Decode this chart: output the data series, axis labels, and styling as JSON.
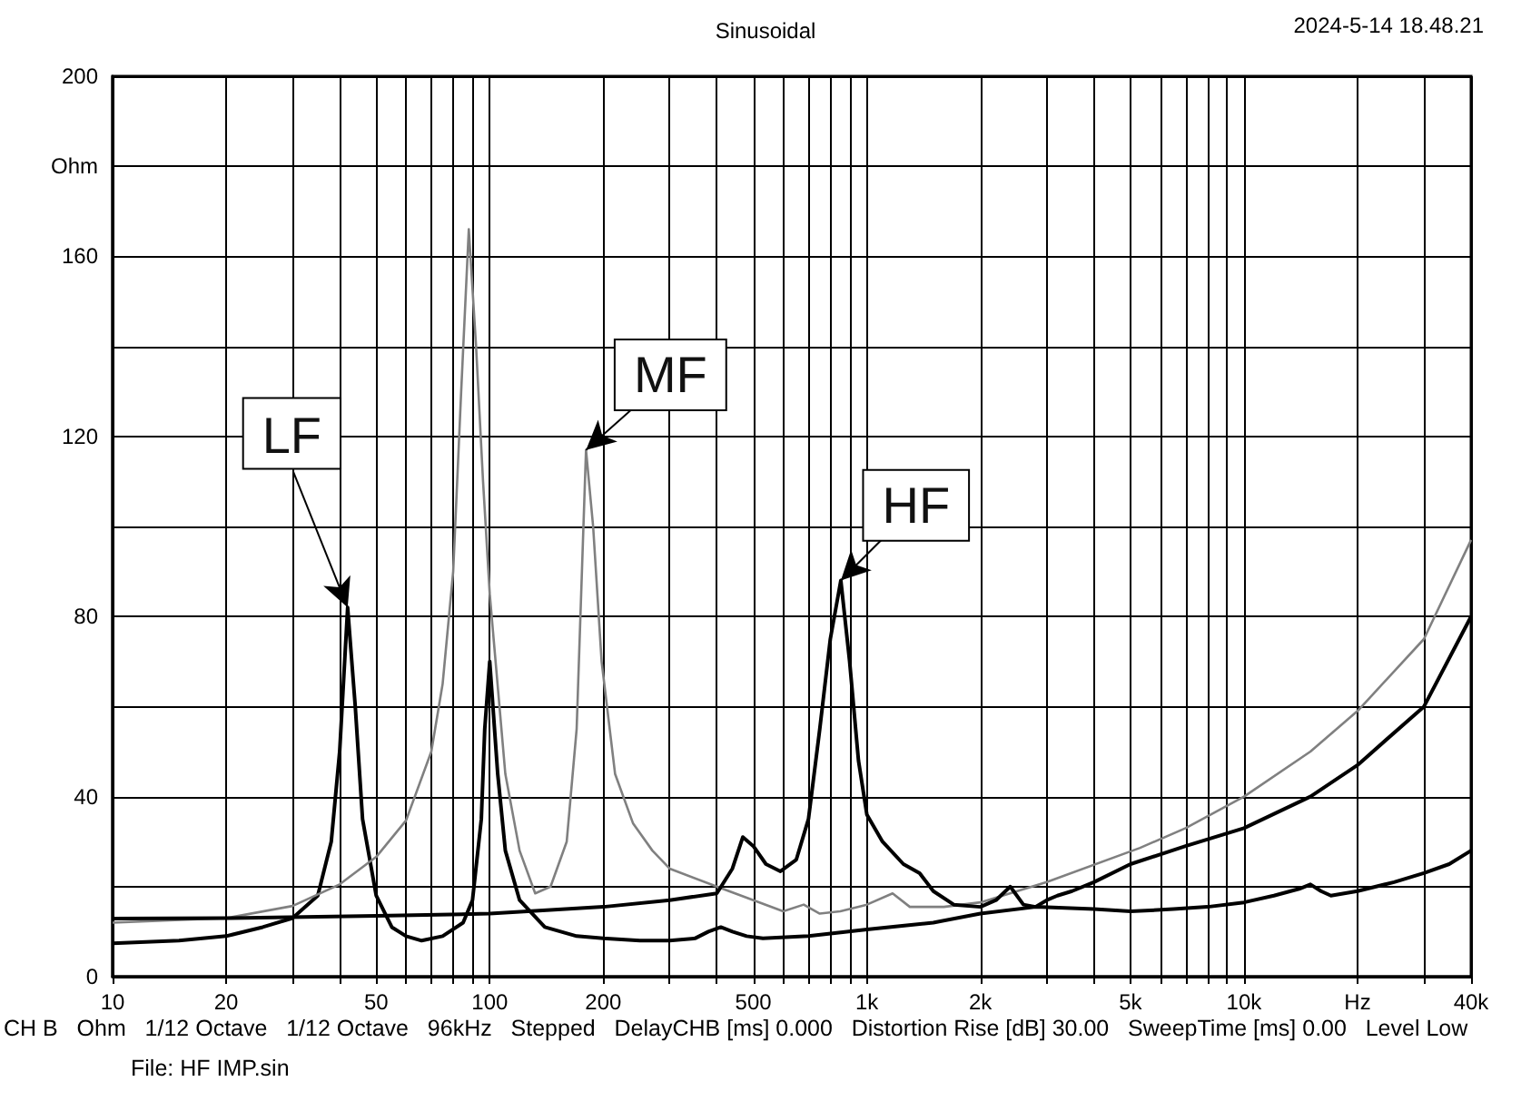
{
  "chart_data": {
    "type": "line",
    "title": "Sinusoidal",
    "annotations": [
      "2024-5-14 18.48.21",
      "CH B   Ohm   1/12 Octave   1/12 Octave   96kHz   Stepped   DelayCHB [ms] 0.000   Distortion Rise [dB] 30.00   SweepTime [ms] 0.00   Level Low",
      "File: HF IMP.sin",
      {
        "text": "LF",
        "x": 42,
        "y": 82
      },
      {
        "text": "MF",
        "x": 180,
        "y": 117
      },
      {
        "text": "HF",
        "x": 853,
        "y": 88
      }
    ],
    "series": [
      {
        "color": "#000000",
        "x": [
          10,
          15,
          20,
          25,
          30,
          35,
          38,
          40,
          42,
          44,
          46,
          50,
          55,
          60,
          66,
          75,
          85,
          90,
          95,
          97,
          100,
          105,
          110,
          120,
          140,
          170,
          200,
          250,
          300,
          350,
          380,
          410,
          440,
          480,
          530,
          700,
          1000,
          1500,
          2000,
          2800,
          4000,
          5000,
          6500,
          8000,
          10000,
          12000,
          14000,
          15000,
          16000,
          17000,
          20000,
          25000,
          30000,
          35000,
          40000
        ],
        "values": [
          7.4,
          8,
          9,
          11,
          13,
          18,
          30,
          50,
          82,
          60,
          35,
          18,
          11,
          9,
          8,
          9,
          12,
          17,
          35,
          55,
          70,
          45,
          28,
          17,
          11,
          9,
          8.5,
          8,
          8,
          8.5,
          10,
          11,
          10,
          9,
          8.5,
          9,
          10.5,
          12,
          14,
          15.5,
          15,
          14.5,
          15,
          15.5,
          16.5,
          18,
          19.5,
          20.5,
          19,
          18,
          19,
          21,
          23,
          25,
          28
        ]
      },
      {
        "color": "#808080",
        "x": [
          10,
          20,
          30,
          40,
          50,
          60,
          70,
          75,
          80,
          84,
          88,
          92,
          96,
          100,
          110,
          120,
          132,
          145,
          160,
          170,
          180,
          188,
          198,
          215,
          240,
          270,
          300,
          400,
          500,
          600,
          680,
          750,
          850,
          1000,
          1170,
          1300,
          1600,
          2000,
          3000,
          5300,
          7000,
          10000,
          15000,
          20000,
          30000,
          40000
        ],
        "values": [
          12,
          13,
          15.7,
          20.5,
          26.6,
          34.7,
          50,
          65,
          90,
          130,
          166,
          140,
          110,
          85,
          45,
          28,
          18.5,
          20,
          30,
          55,
          117,
          100,
          70,
          45,
          34,
          28,
          24,
          20,
          17,
          14.5,
          16,
          14,
          14.5,
          16,
          18.5,
          15.5,
          15.5,
          16.5,
          21,
          28.6,
          33,
          40,
          50,
          59,
          75,
          97
        ]
      },
      {
        "color": "#000000",
        "x": [
          10,
          20,
          50,
          100,
          200,
          300,
          400,
          440,
          469,
          500,
          540,
          590,
          650,
          700,
          750,
          800,
          853,
          900,
          950,
          1000,
          1100,
          1250,
          1380,
          1500,
          1700,
          2000,
          2200,
          2400,
          2600,
          2800,
          3000,
          3200,
          3500,
          4000,
          5000,
          7000,
          10000,
          15000,
          20000,
          30000,
          40000
        ],
        "values": [
          12.9,
          13,
          13.5,
          14,
          15.5,
          17,
          18.5,
          24,
          31,
          29,
          25,
          23.4,
          26,
          35,
          55,
          75,
          88,
          70,
          48,
          36,
          30,
          25,
          23,
          19,
          16,
          15.5,
          17,
          20,
          16,
          15.5,
          17,
          18,
          19,
          21,
          25,
          29,
          33,
          40,
          47,
          60,
          80
        ]
      }
    ],
    "log": "x",
    "xlim": [
      10,
      40000
    ],
    "xticks": [
      10,
      20,
      {
        "value": 30,
        "label": null
      },
      {
        "value": 40,
        "label": null
      },
      50,
      {
        "value": 60,
        "label": null
      },
      {
        "value": 70,
        "label": null
      },
      {
        "value": 80,
        "label": null
      },
      {
        "value": 90,
        "label": null
      },
      100,
      200,
      {
        "value": 300,
        "label": null
      },
      {
        "value": 400,
        "label": null
      },
      500,
      {
        "value": 600,
        "label": null
      },
      {
        "value": 700,
        "label": null
      },
      {
        "value": 800,
        "label": null
      },
      {
        "value": 900,
        "label": null
      },
      {
        "value": 1000,
        "label": "1k"
      },
      {
        "value": 2000,
        "label": "2k"
      },
      {
        "value": 3000,
        "label": null
      },
      {
        "value": 4000,
        "label": null
      },
      {
        "value": 5000,
        "label": "5k"
      },
      {
        "value": 6000,
        "label": null
      },
      {
        "value": 7000,
        "label": null
      },
      {
        "value": 8000,
        "label": null
      },
      {
        "value": 9000,
        "label": null
      },
      {
        "value": 10000,
        "label": "10k"
      },
      {
        "value": 20000,
        "label": "Hz"
      },
      {
        "value": 30000,
        "label": null
      },
      {
        "value": 40000,
        "label": "40k"
      }
    ],
    "ylim": [
      0,
      200
    ],
    "yticks": [
      0,
      {
        "value": 20,
        "label": null
      },
      40,
      {
        "value": 60,
        "label": null
      },
      80,
      {
        "value": 100,
        "label": null
      },
      120,
      {
        "value": 140,
        "label": null
      },
      160,
      {
        "value": 180,
        "label": "Ohm"
      },
      200
    ],
    "grid": true,
    "marker": "none"
  }
}
